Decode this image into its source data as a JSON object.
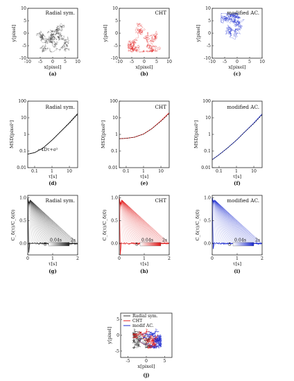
{
  "figure": {
    "colors": {
      "radial": "#333333",
      "cht": "#e01818",
      "modac": "#1a2ad0"
    },
    "row1": [
      {
        "label": "Radial sym.",
        "caption": "(a)",
        "color": "#333333",
        "xlabel": "x[pixel]",
        "ylabel": "y[pixel]",
        "xlim": [
          -10,
          10
        ],
        "ylim": [
          -10,
          10
        ],
        "xticks": [
          "-10",
          "-5",
          "0",
          "5",
          "10"
        ],
        "yticks": [
          "-10",
          "-5",
          "0",
          "5",
          "10"
        ]
      },
      {
        "label": "CHT",
        "caption": "(b)",
        "color": "#e01818",
        "xlabel": "x[pixel]",
        "ylabel": "y[pixel]",
        "xlim": [
          -10,
          10
        ],
        "ylim": [
          -10,
          10
        ],
        "xticks": [
          "-10",
          "-5",
          "0",
          "5",
          "10"
        ],
        "yticks": [
          "-10",
          "-5",
          "0",
          "5",
          "10"
        ]
      },
      {
        "label": "modified AC.",
        "caption": "(c)",
        "color": "#1a2ad0",
        "xlabel": "x[pixel]",
        "ylabel": "y[pixel]",
        "xlim": [
          -10,
          10
        ],
        "ylim": [
          -10,
          10
        ],
        "xticks": [
          "-10",
          "-5",
          "0",
          "5",
          "10"
        ],
        "yticks": [
          "-10",
          "-5",
          "0",
          "5",
          "10"
        ]
      }
    ],
    "row2": [
      {
        "label": "Radial sym.",
        "caption": "(d)",
        "color": "#111111",
        "annotation": "~4Dτ+σ²",
        "xlabel": "τ[s]",
        "ylabel": "MSD[pixel²]",
        "xticks": [
          "0.1",
          "1",
          "10"
        ],
        "yticks": [
          "0.01",
          "0.1",
          "1",
          "10",
          "100"
        ]
      },
      {
        "label": "CHT",
        "caption": "(e)",
        "color": "#e01818",
        "annotation": "",
        "xlabel": "τ[s]",
        "ylabel": "MSD[pixel²]",
        "xticks": [
          "0.1",
          "1",
          "10"
        ],
        "yticks": [
          "0.01",
          "0.1",
          "1",
          "10",
          "100"
        ]
      },
      {
        "label": "modified AC.",
        "caption": "(f)",
        "color": "#1a2ad0",
        "annotation": "",
        "xlabel": "τ[s]",
        "ylabel": "MSD[pixel²]",
        "xticks": [
          "0.1",
          "1",
          "10"
        ],
        "yticks": [
          "0.01",
          "0.1",
          "1",
          "10",
          "100"
        ]
      }
    ],
    "row3": [
      {
        "label": "Radial sym.",
        "caption": "(g)",
        "color": "#222222",
        "xlabel": "τ[s]",
        "ylabel": "C_δ(τ)/C_δ(0)",
        "xticks": [
          "0",
          "1",
          "2"
        ],
        "yticks": [
          "0.0",
          "0.5",
          "1.0"
        ],
        "cbar_delta": "δ",
        "cbar_min": "0.04s",
        "cbar_max": "2s"
      },
      {
        "label": "CHT",
        "caption": "(h)",
        "color": "#e01818",
        "xlabel": "τ[s]",
        "ylabel": "C_δ(τ)/C_δ(0)",
        "xticks": [
          "0",
          "1",
          "2"
        ],
        "yticks": [
          "0.0",
          "0.5",
          "1.0"
        ],
        "cbar_delta": "δ",
        "cbar_min": "0.04s",
        "cbar_max": "2s"
      },
      {
        "label": "modified AC.",
        "caption": "(i)",
        "color": "#1a2ad0",
        "xlabel": "τ[s]",
        "ylabel": "C_δ(τ)/C_δ(0)",
        "xticks": [
          "0",
          "1",
          "2"
        ],
        "yticks": [
          "0.0",
          "0.5",
          "1.0"
        ],
        "cbar_delta": "δ",
        "cbar_min": "0.04s",
        "cbar_max": "2s"
      }
    ],
    "row4": {
      "caption": "(j)",
      "xlabel": "x[pixel]",
      "ylabel": "y[pixel]",
      "xticks": [
        "-5",
        "0",
        "5"
      ],
      "yticks": [
        "-5",
        "0",
        "5"
      ],
      "legend": [
        "Radial sym.",
        "CHT",
        "modif AC."
      ]
    }
  },
  "chart_data": [
    {
      "type": "scatter",
      "title": "Radial sym.",
      "xlabel": "x[pixel]",
      "ylabel": "y[pixel]",
      "xlim": [
        -10,
        10
      ],
      "ylim": [
        -10,
        10
      ],
      "note": "2D trajectory, particle positions roughly within x -6..6, y -7..8"
    },
    {
      "type": "scatter",
      "title": "CHT",
      "xlabel": "x[pixel]",
      "ylabel": "y[pixel]",
      "xlim": [
        -10,
        10
      ],
      "ylim": [
        -10,
        10
      ]
    },
    {
      "type": "scatter",
      "title": "modified AC.",
      "xlabel": "x[pixel]",
      "ylabel": "y[pixel]",
      "xlim": [
        -10,
        10
      ],
      "ylim": [
        -10,
        10
      ]
    },
    {
      "type": "line",
      "title": "Radial sym.",
      "xscale": "log",
      "yscale": "log",
      "xlabel": "τ[s]",
      "ylabel": "MSD[pixel²]",
      "xlim": [
        0.04,
        30
      ],
      "ylim": [
        0.01,
        100
      ],
      "series": [
        {
          "x": [
            0.04,
            0.1,
            0.3,
            1,
            3,
            10,
            30
          ],
          "values": [
            0.065,
            0.08,
            0.15,
            0.45,
            1.4,
            5,
            18
          ]
        }
      ]
    },
    {
      "type": "line",
      "title": "CHT",
      "xscale": "log",
      "yscale": "log",
      "xlabel": "τ[s]",
      "ylabel": "MSD[pixel²]",
      "xlim": [
        0.04,
        30
      ],
      "ylim": [
        0.01,
        100
      ],
      "series": [
        {
          "x": [
            0.04,
            0.1,
            0.3,
            1,
            3,
            10,
            30
          ],
          "values": [
            0.55,
            0.58,
            0.68,
            1.05,
            2.2,
            6.5,
            20
          ]
        }
      ]
    },
    {
      "type": "line",
      "title": "modified AC.",
      "xscale": "log",
      "yscale": "log",
      "xlabel": "τ[s]",
      "ylabel": "MSD[pixel²]",
      "xlim": [
        0.04,
        30
      ],
      "ylim": [
        0.01,
        100
      ],
      "series": [
        {
          "x": [
            0.04,
            0.1,
            0.3,
            1,
            3,
            10,
            30
          ],
          "values": [
            0.03,
            0.06,
            0.15,
            0.45,
            1.4,
            4.8,
            17
          ]
        }
      ]
    },
    {
      "type": "line",
      "title": "Radial sym.",
      "xlabel": "τ[s]",
      "ylabel": "C_δ(τ)/C_δ(0)",
      "xlim": [
        0,
        2
      ],
      "ylim": [
        -0.25,
        1.05
      ],
      "series": [
        {
          "x": [
            0,
            0.04,
            0.08,
            0.5,
            1.0,
            1.5,
            2.0
          ],
          "values": [
            1.0,
            -0.2,
            0.0,
            0.0,
            0.0,
            0.0,
            0.0
          ]
        }
      ]
    },
    {
      "type": "line",
      "title": "CHT",
      "xlabel": "τ[s]",
      "ylabel": "C_δ(τ)/C_δ(0)",
      "xlim": [
        0,
        2
      ],
      "ylim": [
        -0.25,
        1.05
      ],
      "series": [
        {
          "x": [
            0,
            0.04,
            0.08,
            0.5,
            1.0,
            1.5,
            2.0
          ],
          "values": [
            1.0,
            -0.25,
            0.0,
            0.0,
            0.0,
            0.0,
            0.0
          ]
        }
      ]
    },
    {
      "type": "line",
      "title": "modified AC.",
      "xlabel": "τ[s]",
      "ylabel": "C_δ(τ)/C_δ(0)",
      "xlim": [
        0,
        2
      ],
      "ylim": [
        -0.25,
        1.05
      ],
      "series": [
        {
          "x": [
            0,
            0.04,
            0.08,
            0.5,
            1.0,
            1.5,
            2.0
          ],
          "values": [
            1.0,
            -0.12,
            0.0,
            0.0,
            0.0,
            0.0,
            0.0
          ]
        }
      ]
    },
    {
      "type": "scatter",
      "xlabel": "x[pixel]",
      "ylabel": "y[pixel]",
      "xlim": [
        -7,
        7
      ],
      "ylim": [
        -7,
        7
      ],
      "series": [
        {
          "name": "Radial sym."
        },
        {
          "name": "CHT"
        },
        {
          "name": "modif AC."
        }
      ]
    }
  ]
}
